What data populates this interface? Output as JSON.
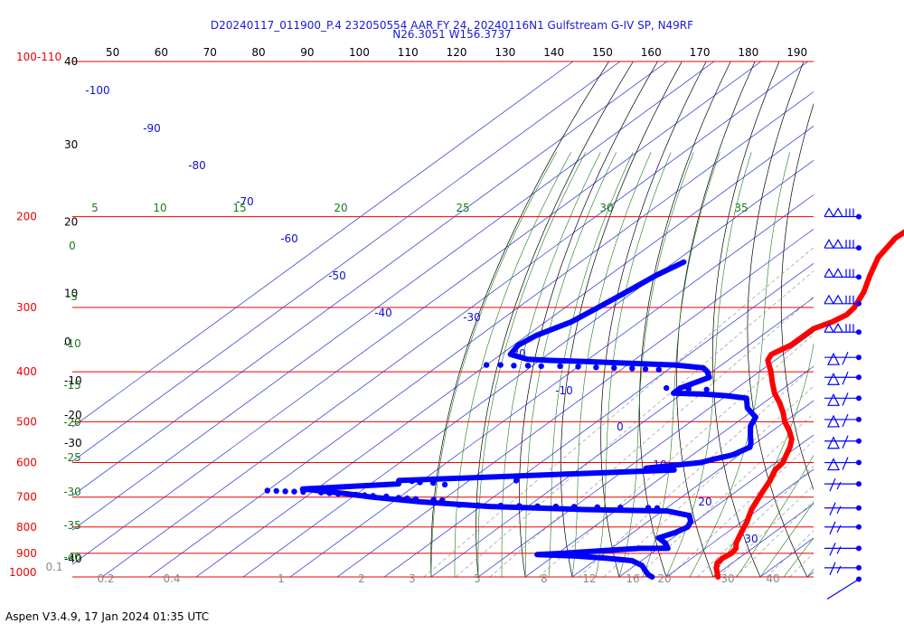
{
  "header": {
    "line1": "D20240117_011900_P.4 232050554 AAR FY 24, 20240116N1 Gulfstream G-IV SP, N49RF",
    "line2": "N26.3051 W156.3737"
  },
  "footer": {
    "text": "Aspen V3.4.9, 17 Jan 2024  01:35 UTC"
  },
  "chart_data": {
    "type": "skew-t log-p sounding",
    "pressure_axis": {
      "units": "hPa",
      "top_label": "100-110",
      "levels": [
        200,
        300,
        400,
        500,
        600,
        700,
        800,
        900,
        1000
      ],
      "range": [
        100,
        1000
      ],
      "scale": "log"
    },
    "height_axis": {
      "labels": [
        "40",
        "30",
        "20",
        "10",
        "0",
        "-10",
        "-20",
        "-30",
        "-40"
      ],
      "label_pressures": [
        100,
        145,
        205,
        282,
        350,
        416,
        485,
        550,
        922
      ]
    },
    "temperature_top_ticks": [
      "50",
      "60",
      "70",
      "80",
      "90",
      "100",
      "110",
      "120",
      "130",
      "140",
      "150",
      "160",
      "170",
      "180",
      "190"
    ],
    "isotherm_labels_blue": [
      {
        "label": "-100",
        "T": -100
      },
      {
        "label": "-90",
        "T": -90
      },
      {
        "label": "-80",
        "T": -80
      },
      {
        "label": "-70",
        "T": -70
      },
      {
        "label": "-60",
        "T": -60
      },
      {
        "label": "-50",
        "T": -50
      },
      {
        "label": "-40",
        "T": -40
      },
      {
        "label": "-30",
        "T": -30
      },
      {
        "label": "-20",
        "T": -20
      },
      {
        "label": "-10",
        "T": -10
      },
      {
        "label": "0",
        "T": 0
      },
      {
        "label": "10",
        "T": 10
      },
      {
        "label": "20",
        "T": 20
      },
      {
        "label": "30",
        "T": 30
      }
    ],
    "moist_adiabat_labels_top": [
      "5",
      "10",
      "15",
      "20",
      "25",
      "30",
      "35"
    ],
    "moist_adiabat_labels_left": [
      "0",
      "-5",
      "-10",
      "-15",
      "-20",
      "-25",
      "-30",
      "-35",
      "-40"
    ],
    "mixing_ratio_labels": [
      "0.1",
      "0.2",
      "0.4",
      "1",
      "2",
      "3",
      "5",
      "8",
      "12",
      "16",
      "20",
      "30",
      "40"
    ],
    "grid": true,
    "colors": {
      "isobar": "#ee0000",
      "isotherm": "#1f2fd8",
      "dry_adiabat": "#000000",
      "moist_adiabat": "#1a7a1a",
      "mixing_ratio": "#888888",
      "temperature": "#ff0000",
      "dewpoint": "#0000ff",
      "label_blue": "#1010d0",
      "label_green": "#1a7a1a",
      "label_gray": "#888888",
      "label_red": "#ee0000"
    },
    "series": [
      {
        "kind": "temperature",
        "points": [
          [
            206,
            -39.5
          ],
          [
            220,
            -40.0
          ],
          [
            240,
            -38.0
          ],
          [
            260,
            -34.5
          ],
          [
            280,
            -31.0
          ],
          [
            300,
            -28.5
          ],
          [
            310,
            -28.0
          ],
          [
            320,
            -29.0
          ],
          [
            330,
            -31.0
          ],
          [
            340,
            -31.0
          ],
          [
            355,
            -31.0
          ],
          [
            370,
            -32.5
          ],
          [
            380,
            -31.5
          ],
          [
            400,
            -27.5
          ],
          [
            420,
            -24.0
          ],
          [
            440,
            -20.5
          ],
          [
            460,
            -16.5
          ],
          [
            480,
            -13.0
          ],
          [
            500,
            -10.0
          ],
          [
            520,
            -6.5
          ],
          [
            540,
            -3.5
          ],
          [
            560,
            -1.5
          ],
          [
            580,
            0.0
          ],
          [
            600,
            1.5
          ],
          [
            620,
            2.0
          ],
          [
            650,
            4.0
          ],
          [
            680,
            5.5
          ],
          [
            700,
            6.5
          ],
          [
            740,
            8.5
          ],
          [
            780,
            11.0
          ],
          [
            820,
            13.0
          ],
          [
            860,
            15.0
          ],
          [
            880,
            16.5
          ],
          [
            900,
            17.0
          ],
          [
            920,
            16.5
          ],
          [
            940,
            16.8
          ],
          [
            960,
            18.0
          ],
          [
            980,
            19.5
          ],
          [
            1000,
            21.0
          ]
        ]
      },
      {
        "kind": "dewpoint",
        "points": [
          [
            245,
            -78.0
          ],
          [
            260,
            -80.0
          ],
          [
            280,
            -81.5
          ],
          [
            300,
            -83.0
          ],
          [
            320,
            -84.5
          ],
          [
            340,
            -88.0
          ],
          [
            355,
            -89.0
          ],
          [
            370,
            -88.0
          ],
          [
            378,
            -83.0
          ],
          [
            380,
            -78.0
          ],
          [
            382,
            -70.0
          ],
          [
            385,
            -60.0
          ],
          [
            388,
            -50.0
          ],
          [
            393,
            -43.0
          ],
          [
            400,
            -41.0
          ],
          [
            410,
            -39.0
          ],
          [
            430,
            -42.0
          ],
          [
            440,
            -42.0
          ],
          [
            442,
            -35.0
          ],
          [
            445,
            -30.0
          ],
          [
            450,
            -25.0
          ],
          [
            470,
            -22.0
          ],
          [
            490,
            -17.5
          ],
          [
            510,
            -16.0
          ],
          [
            530,
            -13.5
          ],
          [
            550,
            -11.0
          ],
          [
            560,
            -10.0
          ],
          [
            580,
            -11.5
          ],
          [
            590,
            -14.0
          ],
          [
            600,
            -16.0
          ],
          [
            615,
            -26.0
          ],
          [
            620,
            -19.5
          ],
          [
            650,
            -75.0
          ],
          [
            660,
            -74.0
          ],
          [
            675,
            -93.0
          ],
          [
            690,
            -82.0
          ],
          [
            700,
            -76.0
          ],
          [
            715,
            -64.0
          ],
          [
            730,
            -48.0
          ],
          [
            740,
            -27.0
          ],
          [
            745,
            -9.0
          ],
          [
            760,
            -3.0
          ],
          [
            780,
            -1.0
          ],
          [
            800,
            0.0
          ],
          [
            820,
            -1.0
          ],
          [
            840,
            -3.0
          ],
          [
            860,
            0.0
          ],
          [
            880,
            2.0
          ],
          [
            880,
            -4.0
          ],
          [
            890,
            -12.0
          ],
          [
            900,
            -19.0
          ],
          [
            905,
            -24.0
          ],
          [
            910,
            -16.0
          ],
          [
            920,
            -8.0
          ],
          [
            930,
            -2.0
          ],
          [
            950,
            1.5
          ],
          [
            970,
            3.5
          ],
          [
            990,
            5.5
          ],
          [
            1000,
            7.0
          ]
        ],
        "scatter": [
          [
            388,
            -90.0
          ],
          [
            388,
            -87.0
          ],
          [
            389,
            -84.0
          ],
          [
            389,
            -81.0
          ],
          [
            390,
            -78.0
          ],
          [
            390,
            -74.0
          ],
          [
            391,
            -70.0
          ],
          [
            392,
            -66.0
          ],
          [
            393,
            -62.0
          ],
          [
            394,
            -58.0
          ],
          [
            395,
            -55.0
          ],
          [
            396,
            -52.0
          ],
          [
            430,
            -45.0
          ],
          [
            432,
            -40.0
          ],
          [
            433,
            -36.0
          ],
          [
            655,
            -70.0
          ],
          [
            657,
            -67.0
          ],
          [
            652,
            -72.0
          ],
          [
            650,
            -50.0
          ],
          [
            662,
            -64.0
          ],
          [
            680,
            -100.0
          ],
          [
            681,
            -98.0
          ],
          [
            682,
            -96.0
          ],
          [
            683,
            -94.0
          ],
          [
            684,
            -92.0
          ],
          [
            686,
            -88.0
          ],
          [
            688,
            -86.0
          ],
          [
            690,
            -84.0
          ],
          [
            692,
            -80.0
          ],
          [
            694,
            -78.0
          ],
          [
            696,
            -76.0
          ],
          [
            698,
            -73.0
          ],
          [
            702,
            -70.0
          ],
          [
            704,
            -68.0
          ],
          [
            706,
            -66.0
          ],
          [
            708,
            -62.0
          ],
          [
            710,
            -60.0
          ],
          [
            725,
            -55.0
          ],
          [
            726,
            -51.0
          ],
          [
            727,
            -46.0
          ],
          [
            728,
            -42.0
          ],
          [
            729,
            -38.0
          ],
          [
            730,
            -34.0
          ],
          [
            731,
            -30.0
          ],
          [
            732,
            -25.0
          ],
          [
            733,
            -20.0
          ],
          [
            734,
            -14.0
          ],
          [
            735,
            -12.0
          ]
        ]
      }
    ],
    "wind_barbs": [
      {
        "p": 200,
        "kind": "pennants"
      },
      {
        "p": 230,
        "kind": "pennants"
      },
      {
        "p": 262,
        "kind": "pennants"
      },
      {
        "p": 295,
        "kind": "pennants"
      },
      {
        "p": 335,
        "kind": "pennants"
      },
      {
        "p": 375,
        "kind": "full"
      },
      {
        "p": 410,
        "kind": "full"
      },
      {
        "p": 450,
        "kind": "full"
      },
      {
        "p": 495,
        "kind": "full"
      },
      {
        "p": 545,
        "kind": "full"
      },
      {
        "p": 600,
        "kind": "full"
      },
      {
        "p": 660,
        "kind": "half"
      },
      {
        "p": 735,
        "kind": "half"
      },
      {
        "p": 800,
        "kind": "half"
      },
      {
        "p": 880,
        "kind": "half"
      },
      {
        "p": 960,
        "kind": "half"
      },
      {
        "p": 1010,
        "kind": "calm"
      }
    ]
  }
}
